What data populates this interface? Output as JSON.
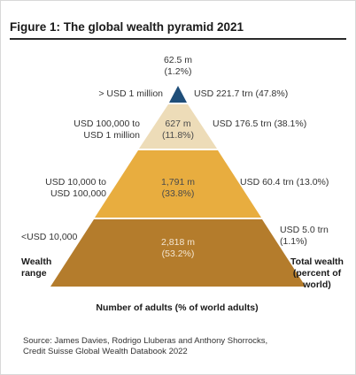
{
  "title": "Figure 1: The global wealth pyramid 2021",
  "chart_data": {
    "type": "pyramid",
    "title": "Figure 1: The global wealth pyramid 2021",
    "xlabel": "Number of adults (% of world adults)",
    "left_axis_label": "Wealth range",
    "right_axis_label": "Total wealth (percent of world)",
    "tiers": [
      {
        "range": "> USD 1 million",
        "adults": "62.5 m",
        "adults_share": "(1.2%)",
        "adults_value": 62.5,
        "adults_pct": 1.2,
        "wealth": "USD 221.7 trn (47.8%)",
        "wealth_value": 221.7,
        "wealth_pct": 47.8,
        "color": "#1f4e79"
      },
      {
        "range": "USD 100,000 to USD 1 million",
        "range_lines": [
          "USD 100,000 to",
          "USD 1 million"
        ],
        "adults": "627 m",
        "adults_share": "(11.8%)",
        "adults_value": 627,
        "adults_pct": 11.8,
        "wealth": "USD 176.5 trn (38.1%)",
        "wealth_value": 176.5,
        "wealth_pct": 38.1,
        "color": "#eddcb8"
      },
      {
        "range": "USD 10,000 to USD 100,000",
        "range_lines": [
          "USD 10,000 to",
          "USD 100,000"
        ],
        "adults": "1,791 m",
        "adults_share": "(33.8%)",
        "adults_value": 1791,
        "adults_pct": 33.8,
        "wealth": "USD 60.4 trn (13.0%)",
        "wealth_value": 60.4,
        "wealth_pct": 13.0,
        "color": "#e8ad3f"
      },
      {
        "range": "<USD 10,000",
        "adults": "2,818 m",
        "adults_share": "(53.2%)",
        "adults_value": 2818,
        "adults_pct": 53.2,
        "wealth_lines": [
          "USD 5.0 trn",
          "(1.1%)"
        ],
        "wealth": "USD 5.0 trn (1.1%)",
        "wealth_value": 5.0,
        "wealth_pct": 1.1,
        "color": "#b47c2c"
      }
    ]
  },
  "axis_labels": {
    "left": [
      "Wealth",
      "range"
    ],
    "right": [
      "Total wealth",
      "(percent of",
      "world)"
    ]
  },
  "source": [
    "Source: James Davies, Rodrigo Lluberas and Anthony Shorrocks,",
    "Credit Suisse Global Wealth Databook 2022"
  ]
}
